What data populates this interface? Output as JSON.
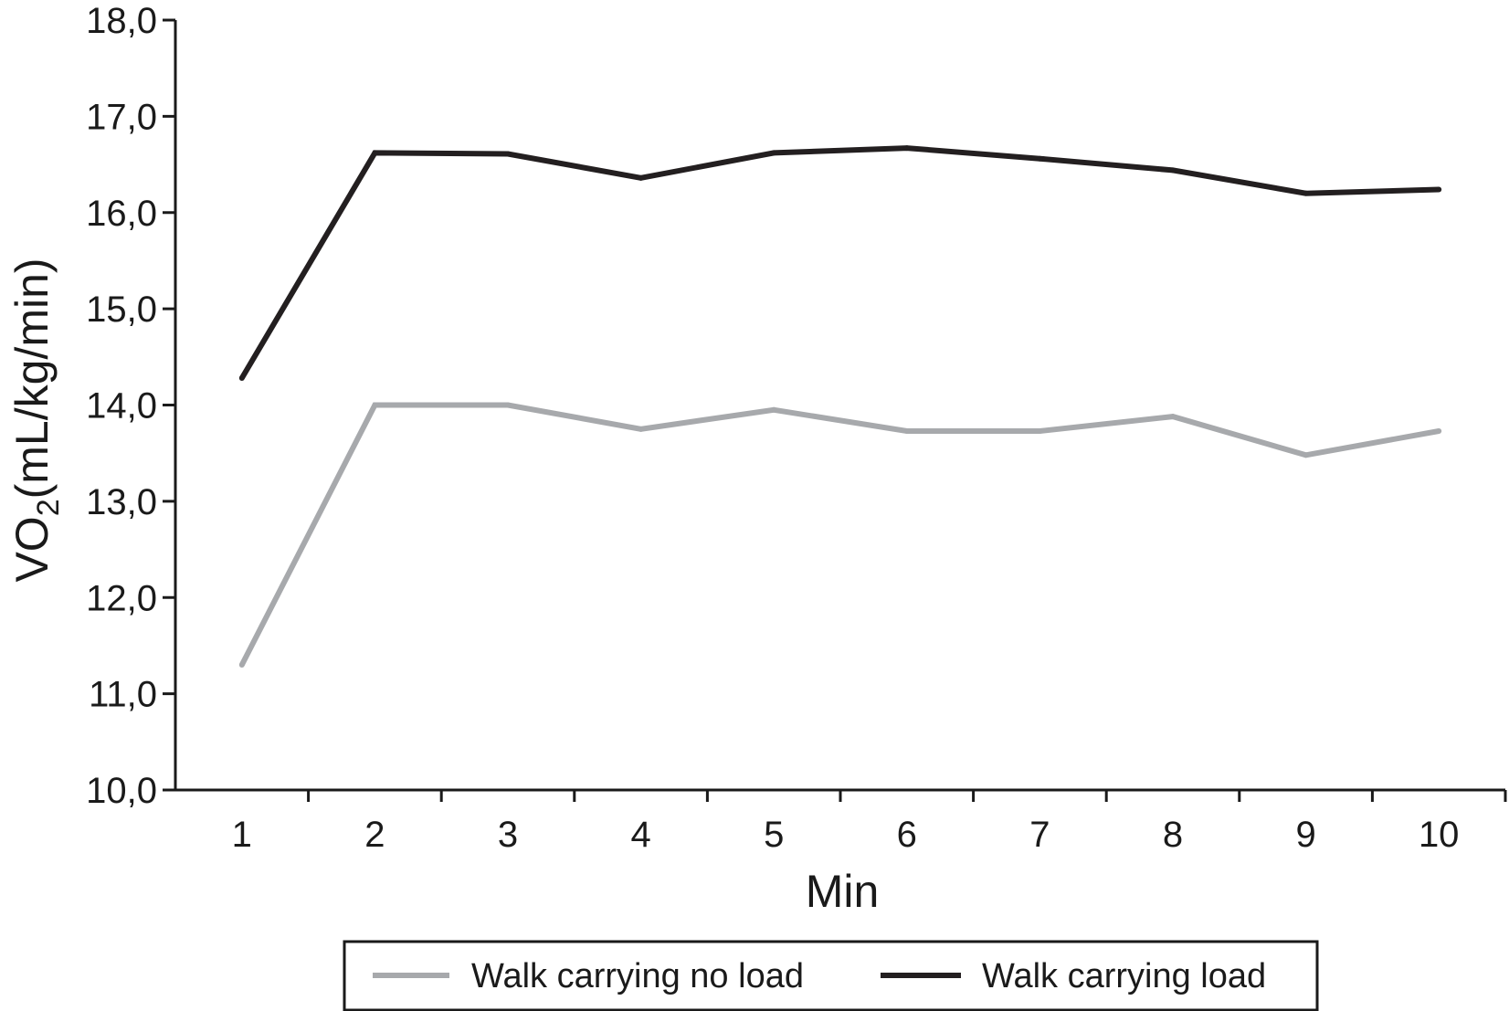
{
  "chart_data": {
    "type": "line",
    "x": [
      1,
      2,
      3,
      4,
      5,
      6,
      7,
      8,
      9,
      10
    ],
    "series": [
      {
        "name": "Walk carrying no load",
        "color": "#a7a9ac",
        "values": [
          11.3,
          14.0,
          14.0,
          13.75,
          13.95,
          13.73,
          13.73,
          13.88,
          13.48,
          13.73
        ]
      },
      {
        "name": "Walk carrying load",
        "color": "#231f20",
        "values": [
          14.28,
          16.62,
          16.61,
          16.36,
          16.62,
          16.67,
          16.56,
          16.44,
          16.2,
          16.24
        ]
      }
    ],
    "xlabel": "Min",
    "ylabel": {
      "prefix": "VO",
      "subscript": "2",
      "suffix": "(mL/kg/min)"
    },
    "xlim": [
      0.5,
      10.5
    ],
    "ylim": [
      10.0,
      18.0
    ],
    "x_ticks": [
      "1",
      "2",
      "3",
      "4",
      "5",
      "6",
      "7",
      "8",
      "9",
      "10"
    ],
    "y_ticks": [
      {
        "value": 10,
        "label": "10,0"
      },
      {
        "value": 11,
        "label": "11,0"
      },
      {
        "value": 12,
        "label": "12,0"
      },
      {
        "value": 13,
        "label": "13,0"
      },
      {
        "value": 14,
        "label": "14,0"
      },
      {
        "value": 15,
        "label": "15,0"
      },
      {
        "value": 16,
        "label": "16,0"
      },
      {
        "value": 17,
        "label": "17,0"
      },
      {
        "value": 18,
        "label": "18,0"
      }
    ],
    "grid": false,
    "legend": "bottom"
  }
}
